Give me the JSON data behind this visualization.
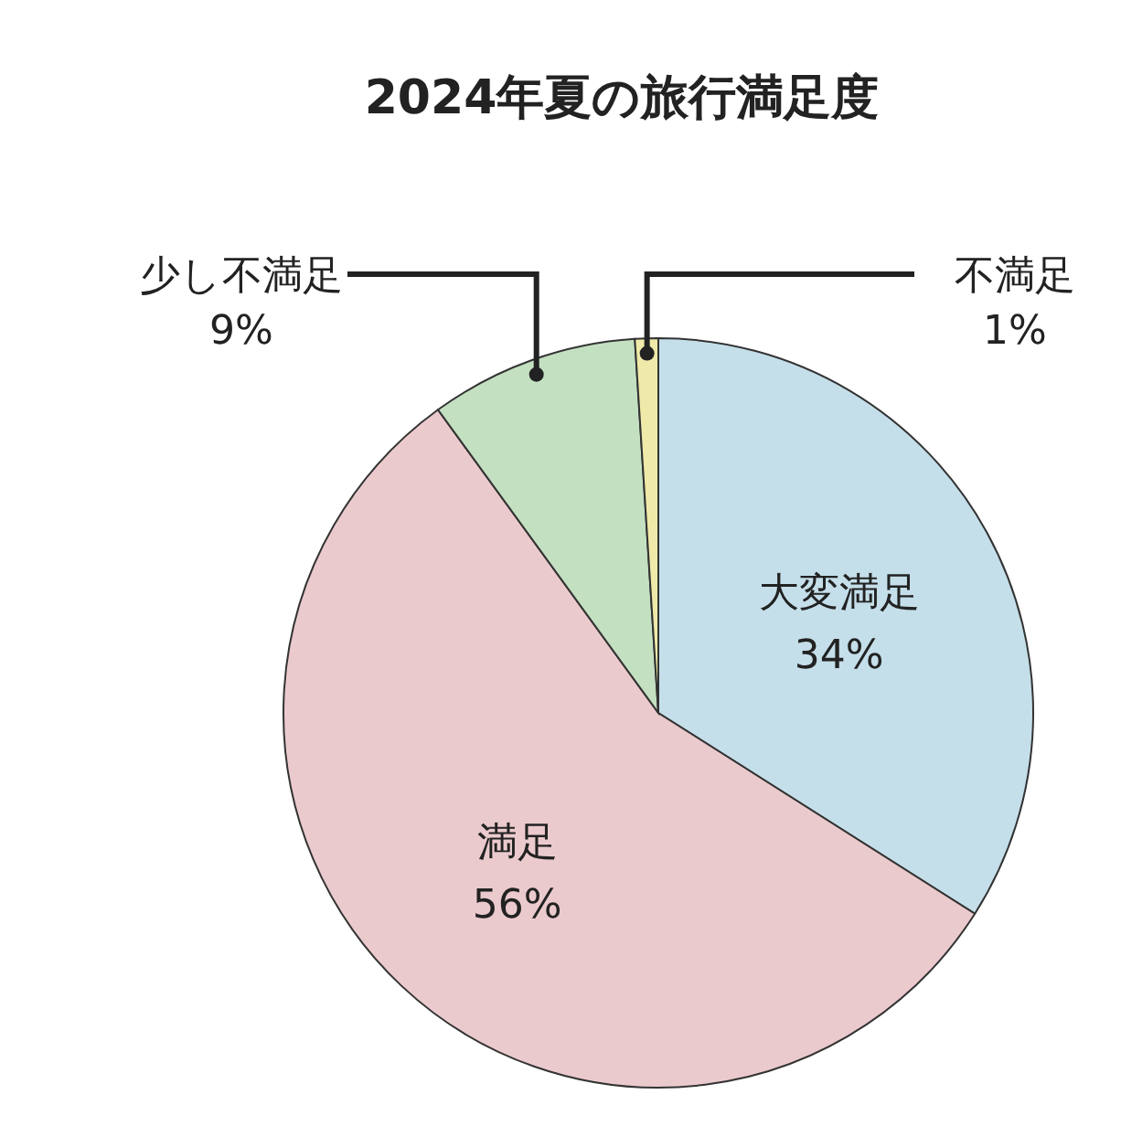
{
  "chart_data": {
    "type": "pie",
    "title": "2024年夏の旅行満足度",
    "categories": [
      "大変満足",
      "満足",
      "少し不満足",
      "不満足"
    ],
    "values": [
      34,
      56,
      9,
      1
    ],
    "value_labels": [
      "34%",
      "56%",
      "9%",
      "1%"
    ],
    "colors": [
      "#c5dfea",
      "#ebcacd",
      "#c3e0c1",
      "#efeaa9"
    ]
  }
}
